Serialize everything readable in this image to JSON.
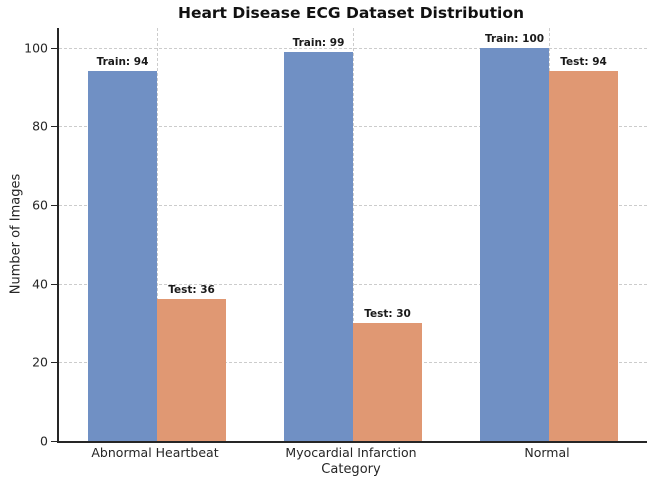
{
  "chart_data": {
    "type": "bar",
    "title": "Heart Disease ECG Dataset Distribution",
    "xlabel": "Category",
    "ylabel": "Number of Images",
    "categories": [
      "Abnormal Heartbeat",
      "Myocardial Infarction",
      "Normal"
    ],
    "series": [
      {
        "name": "Train",
        "color": "#7090C4",
        "values": [
          94,
          99,
          100
        ],
        "bar_labels": [
          "Train: 94",
          "Train: 99",
          "Train: 100"
        ]
      },
      {
        "name": "Test",
        "color": "#E09873",
        "values": [
          36,
          30,
          94
        ],
        "bar_labels": [
          "Test: 36",
          "Test: 30",
          "Test: 94"
        ]
      }
    ],
    "yticks": [
      0,
      20,
      40,
      60,
      80,
      100
    ],
    "ylim": [
      0,
      105
    ],
    "grid": true,
    "grid_axes": "both",
    "grid_style": "dashed",
    "legend": "none",
    "colors": {
      "axis": "#262626",
      "grid": "#cccccc",
      "text": "#1a1a1a"
    }
  }
}
